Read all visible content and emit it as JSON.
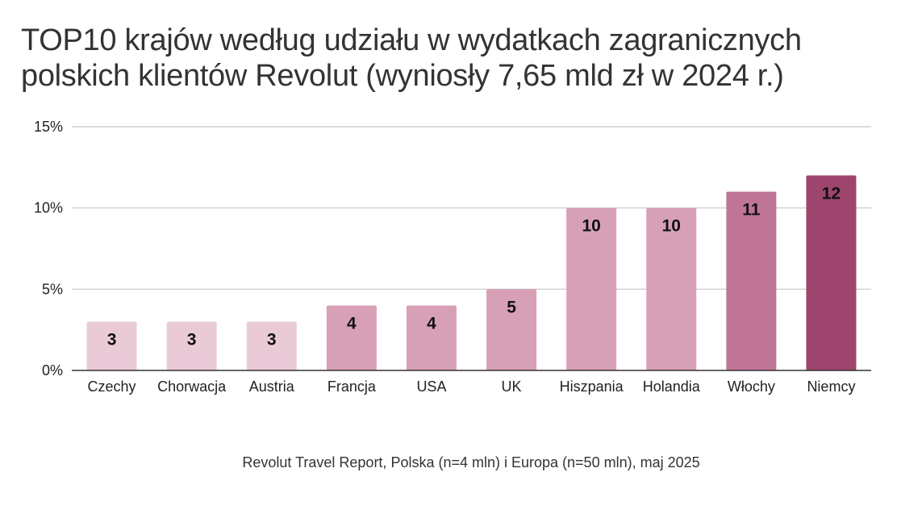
{
  "title_lines": [
    "TOP10 krajów według udziału w wydatkach zagranicznych",
    "polskich klientów Revolut (wyniosły 7,65 mld zł w 2024 r.)"
  ],
  "source": "Revolut Travel Report, Polska (n=4 mln) i Europa (n=50 mln), maj 2025",
  "chart_data": {
    "type": "bar",
    "categories": [
      "Czechy",
      "Chorwacja",
      "Austria",
      "Francja",
      "USA",
      "UK",
      "Hiszpania",
      "Holandia",
      "Włochy",
      "Niemcy"
    ],
    "values": [
      3,
      3,
      3,
      4,
      4,
      5,
      10,
      10,
      11,
      12
    ],
    "data_labels": [
      "3",
      "3",
      "3",
      "4",
      "4",
      "5",
      "10",
      "10",
      "11",
      "12"
    ],
    "bar_colors": [
      "#ebcad7",
      "#ebcad7",
      "#ebcad7",
      "#d7a0b6",
      "#d7a0b6",
      "#d7a0b6",
      "#d7a0b6",
      "#d7a0b6",
      "#c07597",
      "#9e456e"
    ],
    "ylim": [
      0,
      15
    ],
    "yticks": [
      0,
      5,
      10,
      15
    ],
    "ytick_labels": [
      "0%",
      "5%",
      "10%",
      "15%"
    ],
    "grid": true,
    "xlabel": "",
    "ylabel": ""
  }
}
